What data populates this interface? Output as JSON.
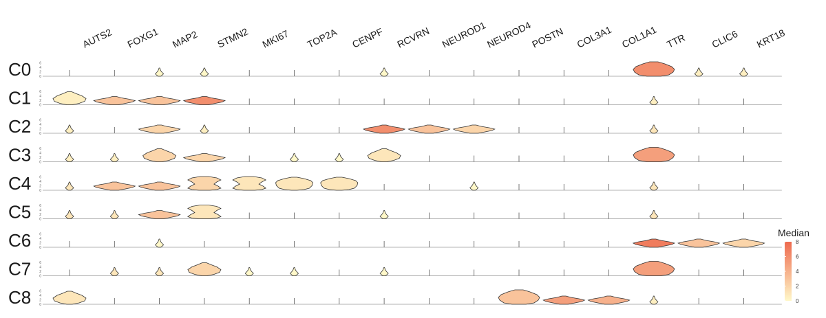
{
  "chart_data": {
    "type": "stacked-violin",
    "genes": [
      "AUTS2",
      "FOXG1",
      "MAP2",
      "STMN2",
      "MKI67",
      "TOP2A",
      "CENPF",
      "RCVRN",
      "NEUROD1",
      "NEUROD4",
      "POSTN",
      "COL3A1",
      "COL1A1",
      "TTR",
      "CLIC6",
      "KRT18"
    ],
    "clusters": [
      "C0",
      "C1",
      "C2",
      "C3",
      "C4",
      "C5",
      "C6",
      "C7",
      "C8"
    ],
    "y_ticks": [
      "0",
      "2",
      "4",
      "6"
    ],
    "shape_codes": {
      "0": "spike (no expression)",
      "1": "small teardrop",
      "2": "flat wide violin",
      "3": "tall violin",
      "4": "bulb",
      "5": "mushroom",
      "6": "double bulb / hourglass"
    },
    "violin_shape": [
      [
        0,
        0,
        1,
        1,
        0,
        0,
        0,
        1,
        0,
        0,
        0,
        0,
        0,
        4,
        1,
        1
      ],
      [
        3,
        2,
        2,
        2,
        0,
        0,
        0,
        0,
        0,
        0,
        0,
        0,
        0,
        1,
        0,
        0
      ],
      [
        1,
        0,
        2,
        1,
        0,
        0,
        0,
        2,
        2,
        2,
        0,
        0,
        0,
        1,
        0,
        0
      ],
      [
        1,
        1,
        3,
        2,
        0,
        1,
        1,
        3,
        0,
        0,
        0,
        0,
        0,
        4,
        0,
        0
      ],
      [
        1,
        2,
        2,
        6,
        6,
        5,
        5,
        0,
        0,
        1,
        0,
        0,
        0,
        1,
        0,
        0
      ],
      [
        1,
        1,
        2,
        6,
        0,
        0,
        0,
        1,
        0,
        0,
        0,
        0,
        0,
        1,
        0,
        0
      ],
      [
        0,
        0,
        1,
        0,
        0,
        0,
        0,
        0,
        0,
        0,
        0,
        0,
        0,
        2,
        2,
        2
      ],
      [
        0,
        1,
        1,
        3,
        1,
        1,
        0,
        1,
        0,
        0,
        0,
        0,
        0,
        4,
        0,
        0
      ],
      [
        3,
        0,
        0,
        0,
        0,
        0,
        0,
        0,
        0,
        0,
        4,
        2,
        2,
        1,
        0,
        0
      ]
    ],
    "median": [
      [
        0,
        0,
        0,
        0,
        0,
        0,
        0,
        0,
        0,
        0,
        0,
        0,
        0,
        6,
        0.5,
        0.5
      ],
      [
        0.5,
        3,
        3,
        6,
        0,
        0,
        0,
        0,
        0,
        0,
        0,
        0,
        0,
        0.5,
        0,
        0
      ],
      [
        0.5,
        0,
        2,
        0.5,
        0,
        0,
        0,
        6,
        3,
        2,
        0,
        0,
        0,
        1,
        0,
        0
      ],
      [
        0.5,
        0.5,
        2,
        2,
        0,
        0,
        0,
        1,
        0,
        0,
        0,
        0,
        0,
        5,
        0,
        0
      ],
      [
        1,
        3,
        3,
        2,
        1,
        1,
        1,
        0,
        0,
        0,
        0,
        0,
        0,
        1,
        0,
        0
      ],
      [
        1,
        1,
        3,
        1,
        0,
        0,
        0,
        0,
        0,
        0,
        0,
        0,
        0,
        1,
        0,
        0
      ],
      [
        0,
        0,
        0,
        0,
        0,
        0,
        0,
        0,
        0,
        0,
        0,
        0,
        0,
        7,
        3,
        2
      ],
      [
        0,
        1,
        1,
        2,
        0,
        0,
        0,
        0,
        0,
        0,
        0,
        0,
        0,
        5,
        0,
        0
      ],
      [
        1,
        0,
        0,
        0,
        0,
        0,
        0,
        0,
        0,
        0,
        3,
        5,
        4,
        0.5,
        0,
        0
      ]
    ],
    "legend": {
      "title": "Median",
      "ticks": [
        "0",
        "2",
        "4",
        "6",
        "8"
      ],
      "min": 0,
      "max": 8,
      "color_low": "#fff8c9",
      "color_high": "#ee6a4e"
    }
  }
}
